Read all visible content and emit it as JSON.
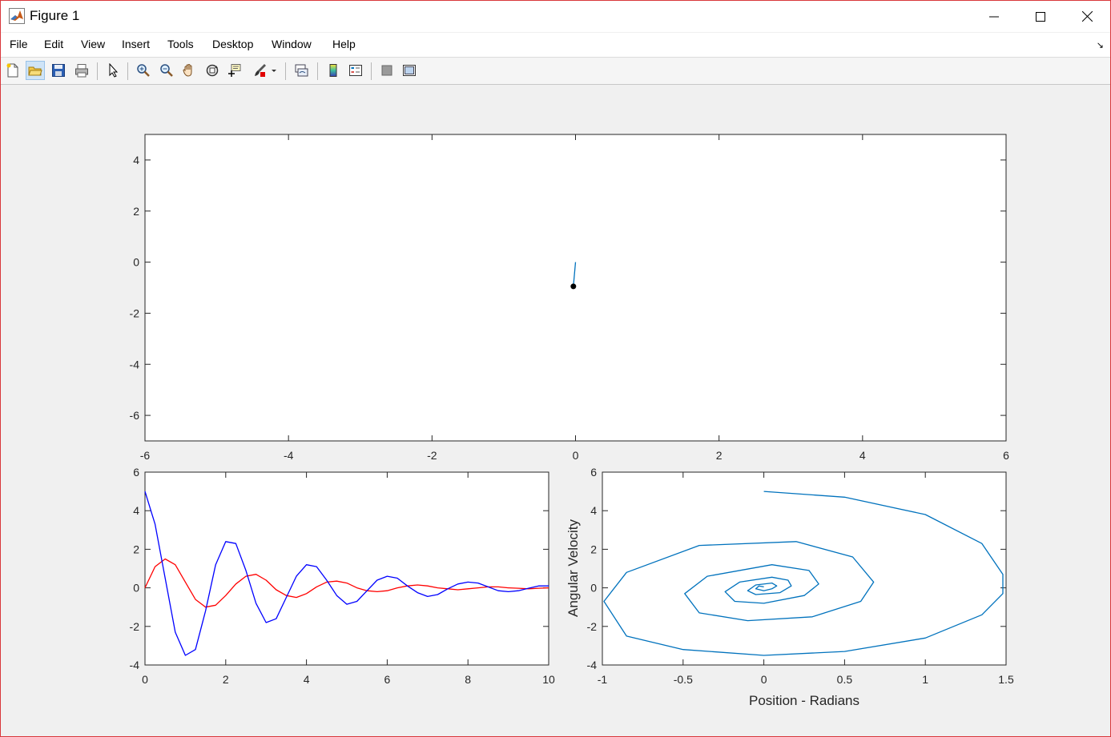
{
  "window": {
    "title": "Figure 1",
    "menu": [
      "File",
      "Edit",
      "View",
      "Insert",
      "Tools",
      "Desktop",
      "Window",
      "Help"
    ],
    "toolbar_icons": [
      "new-figure-icon",
      "open-file-icon",
      "save-icon",
      "print-icon",
      "pointer-icon",
      "zoom-in-icon",
      "zoom-out-icon",
      "pan-hand-icon",
      "rotate-3d-icon",
      "data-cursor-icon",
      "brush-icon",
      "link-plot-icon",
      "colorbar-icon",
      "legend-icon",
      "hide-plot-tools-icon",
      "show-plot-tools-icon"
    ]
  },
  "chart_data": [
    {
      "type": "line",
      "title": "",
      "xlabel": "",
      "ylabel": "",
      "xlim": [
        -6,
        6
      ],
      "ylim": [
        -7,
        5
      ],
      "xticks": [
        -6,
        -4,
        -2,
        0,
        2,
        4,
        6
      ],
      "yticks": [
        -6,
        -4,
        -2,
        0,
        2,
        4
      ],
      "series": [
        {
          "x": [
            0,
            -0.03
          ],
          "y": [
            0,
            -0.95
          ],
          "color": "#0072bd"
        }
      ],
      "points": [
        {
          "x": -0.03,
          "y": -0.95,
          "color": "#000000"
        }
      ]
    },
    {
      "type": "line",
      "title": "",
      "xlabel": "",
      "ylabel": "",
      "xlim": [
        0,
        10
      ],
      "ylim": [
        -4,
        6
      ],
      "xticks": [
        0,
        2,
        4,
        6,
        8,
        10
      ],
      "yticks": [
        -4,
        -2,
        0,
        2,
        4,
        6
      ],
      "series": [
        {
          "color": "#ff0000",
          "x": [
            0,
            0.25,
            0.5,
            0.75,
            1,
            1.25,
            1.5,
            1.75,
            2,
            2.25,
            2.5,
            2.75,
            3,
            3.25,
            3.5,
            3.75,
            4,
            4.25,
            4.5,
            4.75,
            5,
            5.25,
            5.5,
            5.75,
            6,
            6.25,
            6.5,
            6.75,
            7,
            7.25,
            7.5,
            7.75,
            8,
            8.25,
            8.5,
            8.75,
            9,
            9.25,
            9.5,
            9.75,
            10
          ],
          "y": [
            0,
            1.1,
            1.5,
            1.2,
            0.3,
            -0.6,
            -1.0,
            -0.9,
            -0.4,
            0.2,
            0.6,
            0.7,
            0.4,
            -0.1,
            -0.4,
            -0.5,
            -0.3,
            0.05,
            0.3,
            0.35,
            0.25,
            0.0,
            -0.15,
            -0.2,
            -0.15,
            0.0,
            0.1,
            0.15,
            0.1,
            0.0,
            -0.05,
            -0.1,
            -0.05,
            0.0,
            0.05,
            0.05,
            0.0,
            -0.02,
            -0.05,
            -0.02,
            0.0
          ]
        },
        {
          "color": "#0000ff",
          "x": [
            0,
            0.25,
            0.5,
            0.75,
            1,
            1.25,
            1.5,
            1.75,
            2,
            2.25,
            2.5,
            2.75,
            3,
            3.25,
            3.5,
            3.75,
            4,
            4.25,
            4.5,
            4.75,
            5,
            5.25,
            5.5,
            5.75,
            6,
            6.25,
            6.5,
            6.75,
            7,
            7.25,
            7.5,
            7.75,
            8,
            8.25,
            8.5,
            8.75,
            9,
            9.25,
            9.5,
            9.75,
            10
          ],
          "y": [
            5.0,
            3.3,
            0.5,
            -2.3,
            -3.5,
            -3.2,
            -1.2,
            1.2,
            2.4,
            2.3,
            0.9,
            -0.8,
            -1.8,
            -1.6,
            -0.5,
            0.6,
            1.2,
            1.1,
            0.4,
            -0.4,
            -0.85,
            -0.7,
            -0.15,
            0.4,
            0.6,
            0.5,
            0.1,
            -0.25,
            -0.45,
            -0.35,
            -0.05,
            0.2,
            0.3,
            0.25,
            0.05,
            -0.15,
            -0.2,
            -0.15,
            -0.02,
            0.1,
            0.1
          ]
        }
      ]
    },
    {
      "type": "line",
      "title": "",
      "xlabel": "Position - Radians",
      "ylabel": "Angular Velocity",
      "xlim": [
        -1,
        1.5
      ],
      "ylim": [
        -4,
        6
      ],
      "xticks": [
        -1,
        -0.5,
        0,
        0.5,
        1,
        1.5
      ],
      "yticks": [
        -4,
        -2,
        0,
        2,
        4,
        6
      ],
      "series": [
        {
          "color": "#0072bd",
          "x": [
            0,
            0.5,
            1.0,
            1.35,
            1.48,
            1.48,
            1.35,
            1.0,
            0.5,
            0,
            -0.5,
            -0.85,
            -0.99,
            -0.85,
            -0.4,
            0.2,
            0.55,
            0.68,
            0.6,
            0.3,
            -0.1,
            -0.4,
            -0.49,
            -0.35,
            0.05,
            0.28,
            0.34,
            0.25,
            0.0,
            -0.18,
            -0.24,
            -0.15,
            0.05,
            0.15,
            0.17,
            0.1,
            -0.05,
            -0.1,
            -0.05,
            0.05,
            0.08,
            0.05,
            0.0,
            -0.05,
            -0.03,
            0.0
          ],
          "y": [
            5.0,
            4.7,
            3.8,
            2.3,
            0.7,
            -0.3,
            -1.4,
            -2.6,
            -3.3,
            -3.5,
            -3.2,
            -2.5,
            -0.7,
            0.8,
            2.2,
            2.4,
            1.6,
            0.3,
            -0.7,
            -1.5,
            -1.7,
            -1.3,
            -0.3,
            0.6,
            1.2,
            0.9,
            0.2,
            -0.4,
            -0.8,
            -0.7,
            -0.2,
            0.3,
            0.55,
            0.4,
            0.1,
            -0.25,
            -0.35,
            -0.15,
            0.15,
            0.25,
            0.1,
            -0.05,
            -0.15,
            -0.05,
            0.1,
            0.05
          ]
        }
      ]
    }
  ]
}
